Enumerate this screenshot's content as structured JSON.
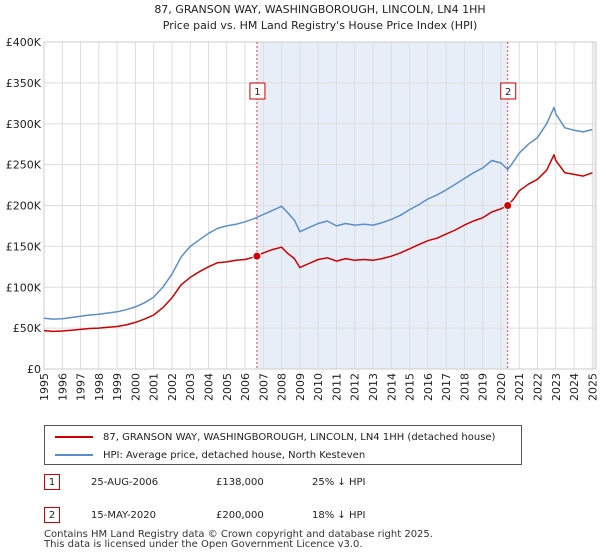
{
  "chart_data": {
    "type": "line",
    "title": "87, GRANSON WAY, WASHINGBOROUGH, LINCOLN, LN4 1HH",
    "subtitle": "Price paid vs. HM Land Registry's House Price Index (HPI)",
    "xlabel": "",
    "ylabel": "",
    "xlim": [
      1995,
      2025.2
    ],
    "ylim": [
      0,
      400000
    ],
    "y_ticks": [
      0,
      50000,
      100000,
      150000,
      200000,
      250000,
      300000,
      350000,
      400000
    ],
    "y_tick_labels": [
      "£0",
      "£50K",
      "£100K",
      "£150K",
      "£200K",
      "£250K",
      "£300K",
      "£350K",
      "£400K"
    ],
    "x_ticks": [
      1995,
      1996,
      1997,
      1998,
      1999,
      2000,
      2001,
      2002,
      2003,
      2004,
      2005,
      2006,
      2007,
      2008,
      2009,
      2010,
      2011,
      2012,
      2013,
      2014,
      2015,
      2016,
      2017,
      2018,
      2019,
      2020,
      2021,
      2022,
      2023,
      2024,
      2025
    ],
    "x_tick_labels": [
      "1995",
      "1996",
      "1997",
      "1998",
      "1999",
      "2000",
      "2001",
      "2002",
      "2003",
      "2004",
      "2005",
      "2006",
      "2007",
      "2008",
      "2009",
      "2010",
      "2011",
      "2012",
      "2013",
      "2014",
      "2015",
      "2016",
      "2017",
      "2018",
      "2019",
      "2020",
      "2021",
      "2022",
      "2023",
      "2024",
      "2025"
    ],
    "grid": true,
    "series": [
      {
        "name": "87, GRANSON WAY, WASHINGBOROUGH, LINCOLN, LN4 1HH (detached house)",
        "color": "#cc0000",
        "x": [
          1995.0,
          1995.5,
          1996.0,
          1996.5,
          1997.0,
          1997.5,
          1998.0,
          1998.5,
          1999.0,
          1999.5,
          2000.0,
          2000.5,
          2001.0,
          2001.5,
          2002.0,
          2002.5,
          2003.0,
          2003.5,
          2004.0,
          2004.5,
          2005.0,
          2005.5,
          2006.0,
          2006.65,
          2007.0,
          2007.5,
          2008.0,
          2008.3,
          2008.7,
          2009.0,
          2009.5,
          2010.0,
          2010.5,
          2011.0,
          2011.5,
          2012.0,
          2012.5,
          2013.0,
          2013.5,
          2014.0,
          2014.5,
          2015.0,
          2015.5,
          2016.0,
          2016.5,
          2017.0,
          2017.5,
          2018.0,
          2018.5,
          2019.0,
          2019.5,
          2020.0,
          2020.37,
          2020.7,
          2021.0,
          2021.5,
          2022.0,
          2022.5,
          2022.9,
          2023.0,
          2023.5,
          2024.0,
          2024.5,
          2025.0
        ],
        "values": [
          47000,
          46000,
          46500,
          47500,
          48500,
          49500,
          50000,
          51000,
          52000,
          54000,
          57000,
          61000,
          66000,
          75000,
          87000,
          103000,
          112000,
          119000,
          125000,
          130000,
          131000,
          133000,
          134000,
          138000,
          142000,
          146000,
          149000,
          142000,
          135000,
          124000,
          129000,
          134000,
          136000,
          132000,
          135000,
          133000,
          134000,
          133000,
          135000,
          138000,
          142000,
          147000,
          152000,
          157000,
          160000,
          165000,
          170000,
          176000,
          181000,
          185000,
          192000,
          196000,
          200000,
          208000,
          218000,
          226000,
          232000,
          243000,
          262000,
          255000,
          240000,
          238000,
          236000,
          240000
        ]
      },
      {
        "name": "HPI: Average price, detached house, North Kesteven",
        "color": "#5b8fc9",
        "x": [
          1995.0,
          1995.5,
          1996.0,
          1996.5,
          1997.0,
          1997.5,
          1998.0,
          1998.5,
          1999.0,
          1999.5,
          2000.0,
          2000.5,
          2001.0,
          2001.5,
          2002.0,
          2002.5,
          2003.0,
          2003.5,
          2004.0,
          2004.5,
          2005.0,
          2005.5,
          2006.0,
          2006.5,
          2007.0,
          2007.5,
          2008.0,
          2008.3,
          2008.7,
          2009.0,
          2009.5,
          2010.0,
          2010.5,
          2011.0,
          2011.5,
          2012.0,
          2012.5,
          2013.0,
          2013.5,
          2014.0,
          2014.5,
          2015.0,
          2015.5,
          2016.0,
          2016.5,
          2017.0,
          2017.5,
          2018.0,
          2018.5,
          2019.0,
          2019.5,
          2020.0,
          2020.37,
          2020.7,
          2021.0,
          2021.5,
          2022.0,
          2022.5,
          2022.9,
          2023.0,
          2023.5,
          2024.0,
          2024.5,
          2025.0
        ],
        "values": [
          62000,
          61000,
          61500,
          63000,
          64500,
          66000,
          67000,
          68500,
          70000,
          72500,
          76000,
          81000,
          88000,
          100000,
          116000,
          137000,
          150000,
          158000,
          166000,
          172000,
          175000,
          177000,
          180000,
          184000,
          189000,
          194000,
          199000,
          192000,
          182000,
          168000,
          173000,
          178000,
          181000,
          175000,
          178000,
          176000,
          177000,
          176000,
          179000,
          183000,
          188000,
          195000,
          201000,
          208000,
          213000,
          219000,
          226000,
          233000,
          240000,
          246000,
          255000,
          252000,
          244000,
          254000,
          264000,
          275000,
          283000,
          300000,
          320000,
          312000,
          295000,
          292000,
          290000,
          293000
        ]
      }
    ],
    "annotations": [
      {
        "label": "1",
        "x": 2006.65,
        "price": 138000
      },
      {
        "label": "2",
        "x": 2020.37,
        "price": 200000
      }
    ]
  },
  "legend": {
    "property_label": "87, GRANSON WAY, WASHINGBOROUGH, LINCOLN, LN4 1HH (detached house)",
    "hpi_label": "HPI: Average price, detached house, North Kesteven"
  },
  "transactions": [
    {
      "num": "1",
      "date": "25-AUG-2006",
      "price": "£138,000",
      "hpi": "25% ↓ HPI"
    },
    {
      "num": "2",
      "date": "15-MAY-2020",
      "price": "£200,000",
      "hpi": "18% ↓ HPI"
    }
  ],
  "footer": {
    "line1": "Contains HM Land Registry data © Crown copyright and database right 2025.",
    "line2": "This data is licensed under the Open Government Licence v3.0."
  },
  "colors": {
    "property": "#cc0000",
    "hpi": "#5b8fc9",
    "shade": "#e8eef8",
    "grid": "#dddddd"
  }
}
